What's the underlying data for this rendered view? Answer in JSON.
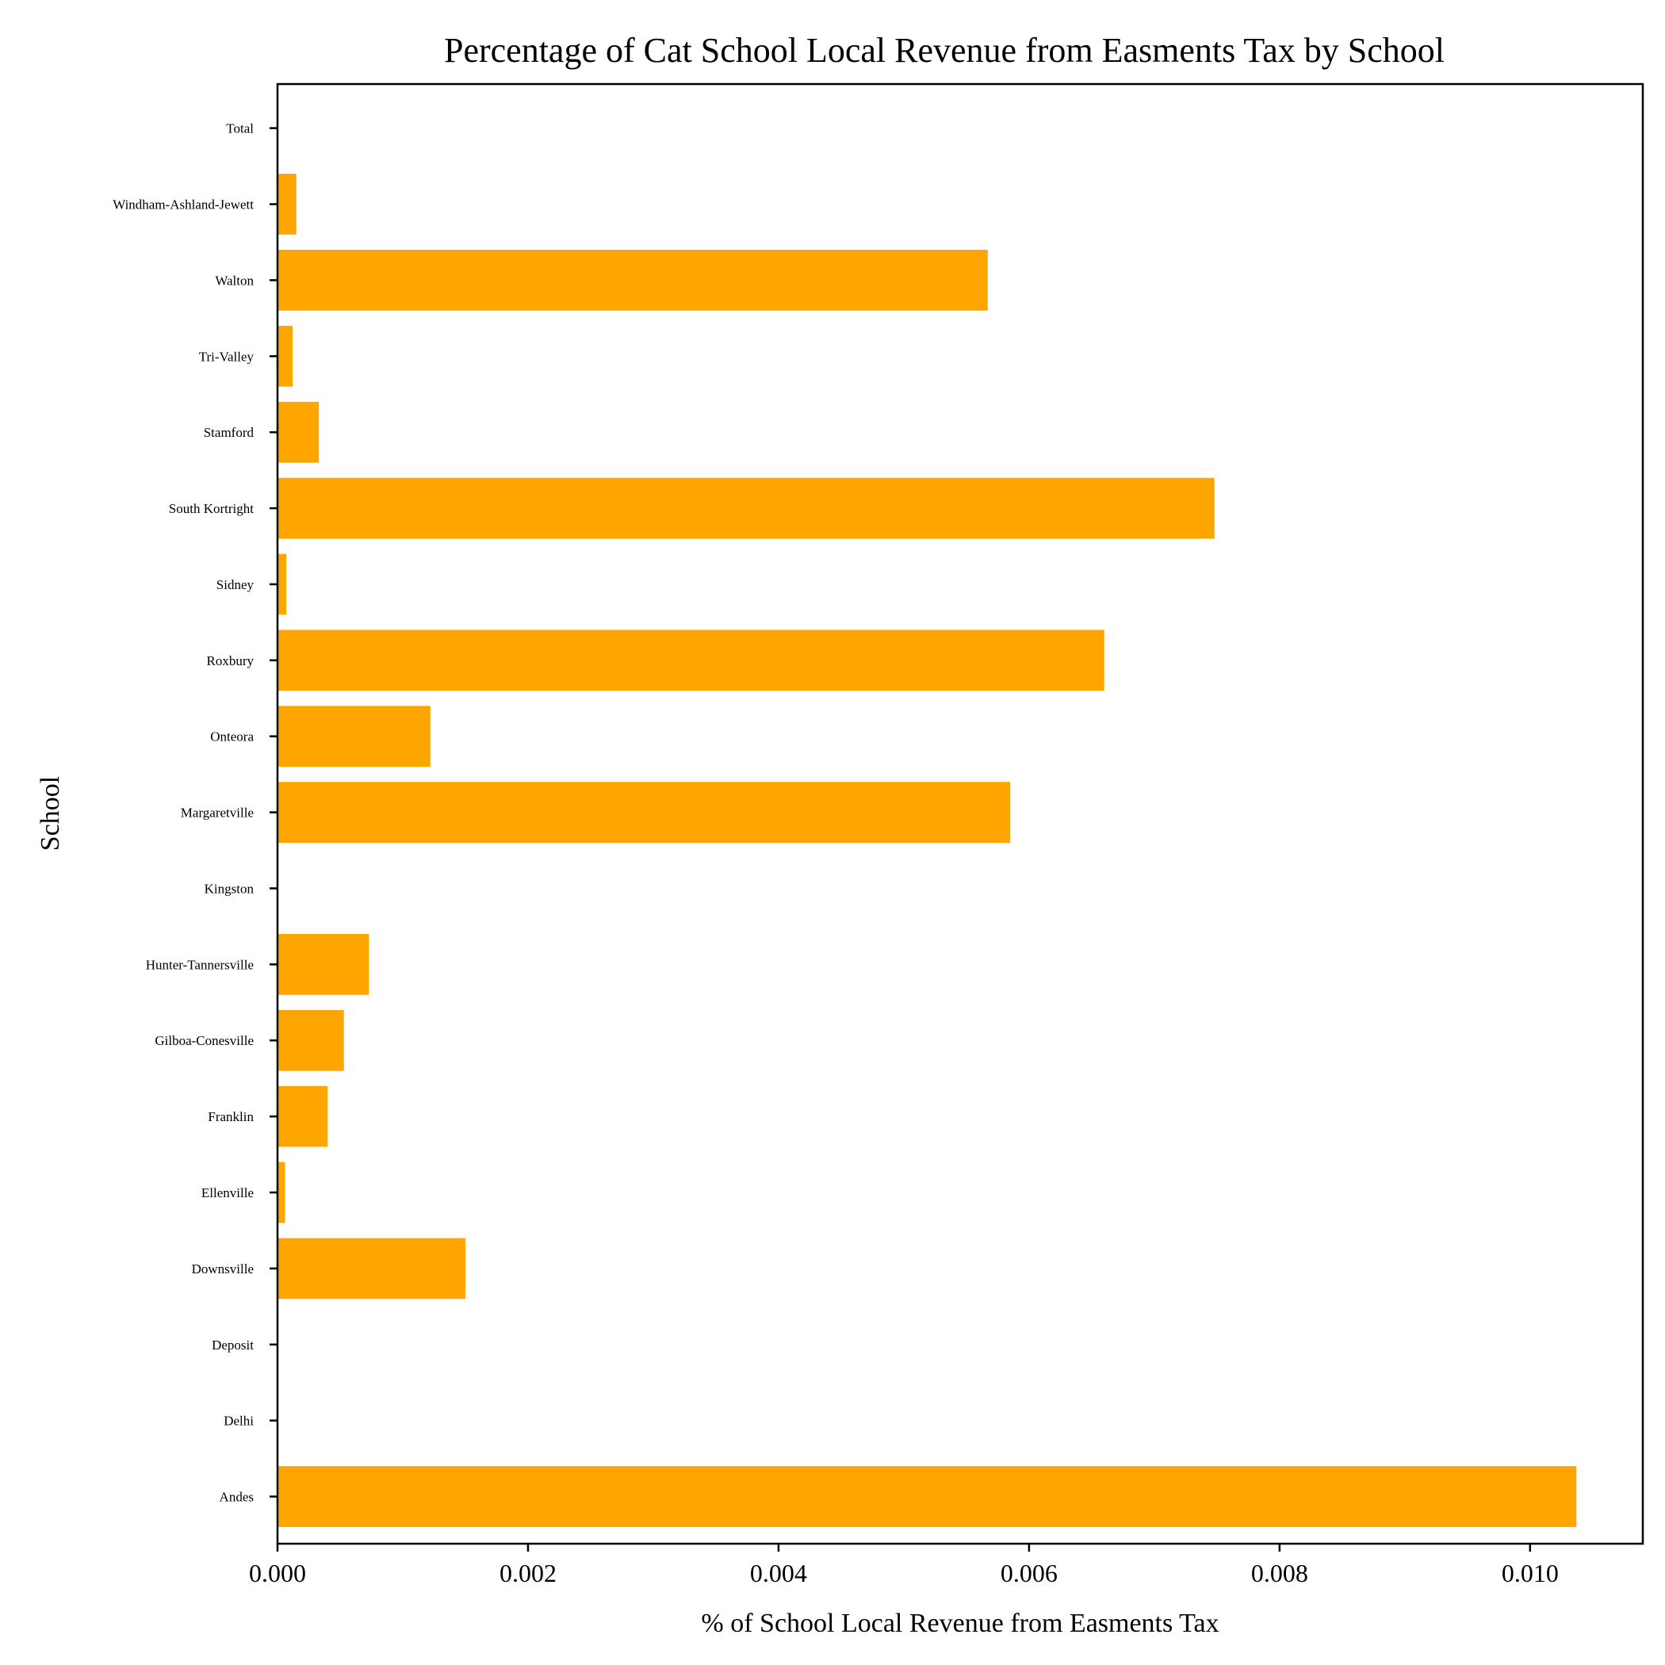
{
  "chart_data": {
    "type": "bar",
    "orientation": "horizontal",
    "title": "Percentage of Cat School Local Revenue from Easments Tax by School",
    "xlabel": "% of School Local Revenue from Easments Tax",
    "ylabel": "School",
    "bar_color": "#FFA500",
    "xlim": [
      0,
      0.0109
    ],
    "xticks": [
      "0.000",
      "0.002",
      "0.004",
      "0.006",
      "0.008",
      "0.010"
    ],
    "grid": false,
    "categories": [
      "Andes",
      "Delhi",
      "Deposit",
      "Downsville",
      "Ellenville",
      "Franklin",
      "Gilboa-Conesville",
      "Hunter-Tannersville",
      "Kingston",
      "Margaretville",
      "Onteora",
      "Roxbury",
      "Sidney",
      "South Kortright",
      "Stamford",
      "Tri-Valley",
      "Walton",
      "Windham-Ashland-Jewett",
      "Total"
    ],
    "values": [
      0.01037,
      0.0,
      0.0,
      0.0015,
      6e-05,
      0.0004,
      0.00053,
      0.00073,
      0.0,
      0.00585,
      0.00122,
      0.0066,
      7e-05,
      0.00748,
      0.00033,
      0.00012,
      0.00567,
      0.00015,
      0.0
    ]
  }
}
